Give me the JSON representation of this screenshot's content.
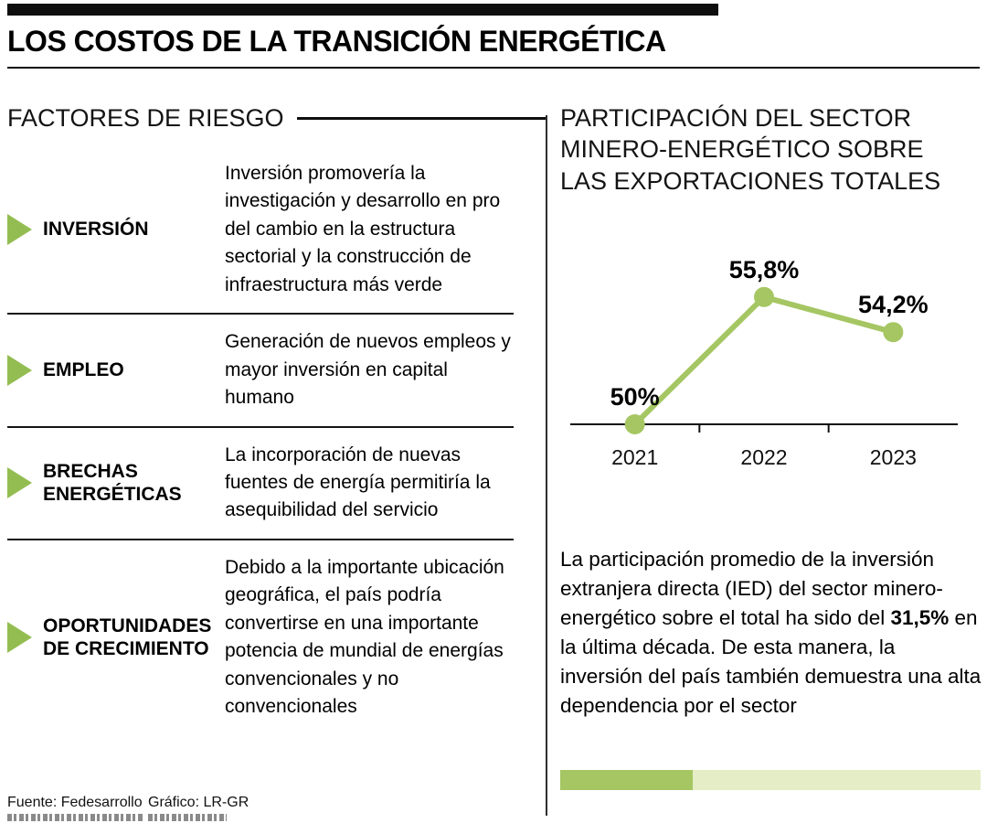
{
  "header": {
    "title": "LOS COSTOS DE LA TRANSICIÓN ENERGÉTICA"
  },
  "risk_factors": {
    "heading": "FACTORES DE RIESGO",
    "items": [
      {
        "label": "INVERSIÓN",
        "description": "Inversión promovería la investigación y desarrollo en pro del cambio en la estructura sectorial y la construcción de infraestructura más verde"
      },
      {
        "label": "EMPLEO",
        "description": "Generación de nuevos empleos y mayor inversión en capital humano"
      },
      {
        "label": "BRECHAS ENERGÉTICAS",
        "description": "La incorporación de nuevas fuentes de energía permitiría la asequibilidad del servicio"
      },
      {
        "label": "OPORTUNIDADES DE CRECIMIENTO",
        "description": "Debido a la importante ubicación geográfica, el país podría convertirse en una importante potencia de mundial de energías convencionales y no convencionales"
      }
    ]
  },
  "exports": {
    "heading_lines": [
      "PARTICIPACIÓN DEL SECTOR",
      "MINERO-ENERGÉTICO SOBRE",
      "LAS EXPORTACIONES TOTALES"
    ],
    "annotation": {
      "text_before": "La participación promedio de la inversión extranjera directa (IED) del sector minero-energético sobre el total ha sido del ",
      "bold": "31,5%",
      "text_after": " en la última década. De esta manera, la inversión del país también demuestra una alta dependencia por el sector"
    },
    "dependency_bar_pct": 31.5
  },
  "chart_data": {
    "type": "line",
    "title": "Participación del sector minero-energético sobre las exportaciones totales",
    "categories": [
      "2021",
      "2022",
      "2023"
    ],
    "values": [
      50,
      55.8,
      54.2
    ],
    "value_labels": [
      "50%",
      "55,8%",
      "54,2%"
    ],
    "xlabel": "",
    "ylabel": "",
    "ylim": [
      50,
      58
    ],
    "baseline_value": 50,
    "grid": false,
    "legend": false
  },
  "footer": {
    "source": "Fuente: Fedesarrollo",
    "credit": "Gráfico: LR-GR"
  },
  "colors": {
    "accent_green": "#a5c663",
    "arrow_green": "#93bd51",
    "bar_track": "#e4edc5",
    "ink": "#000000"
  }
}
